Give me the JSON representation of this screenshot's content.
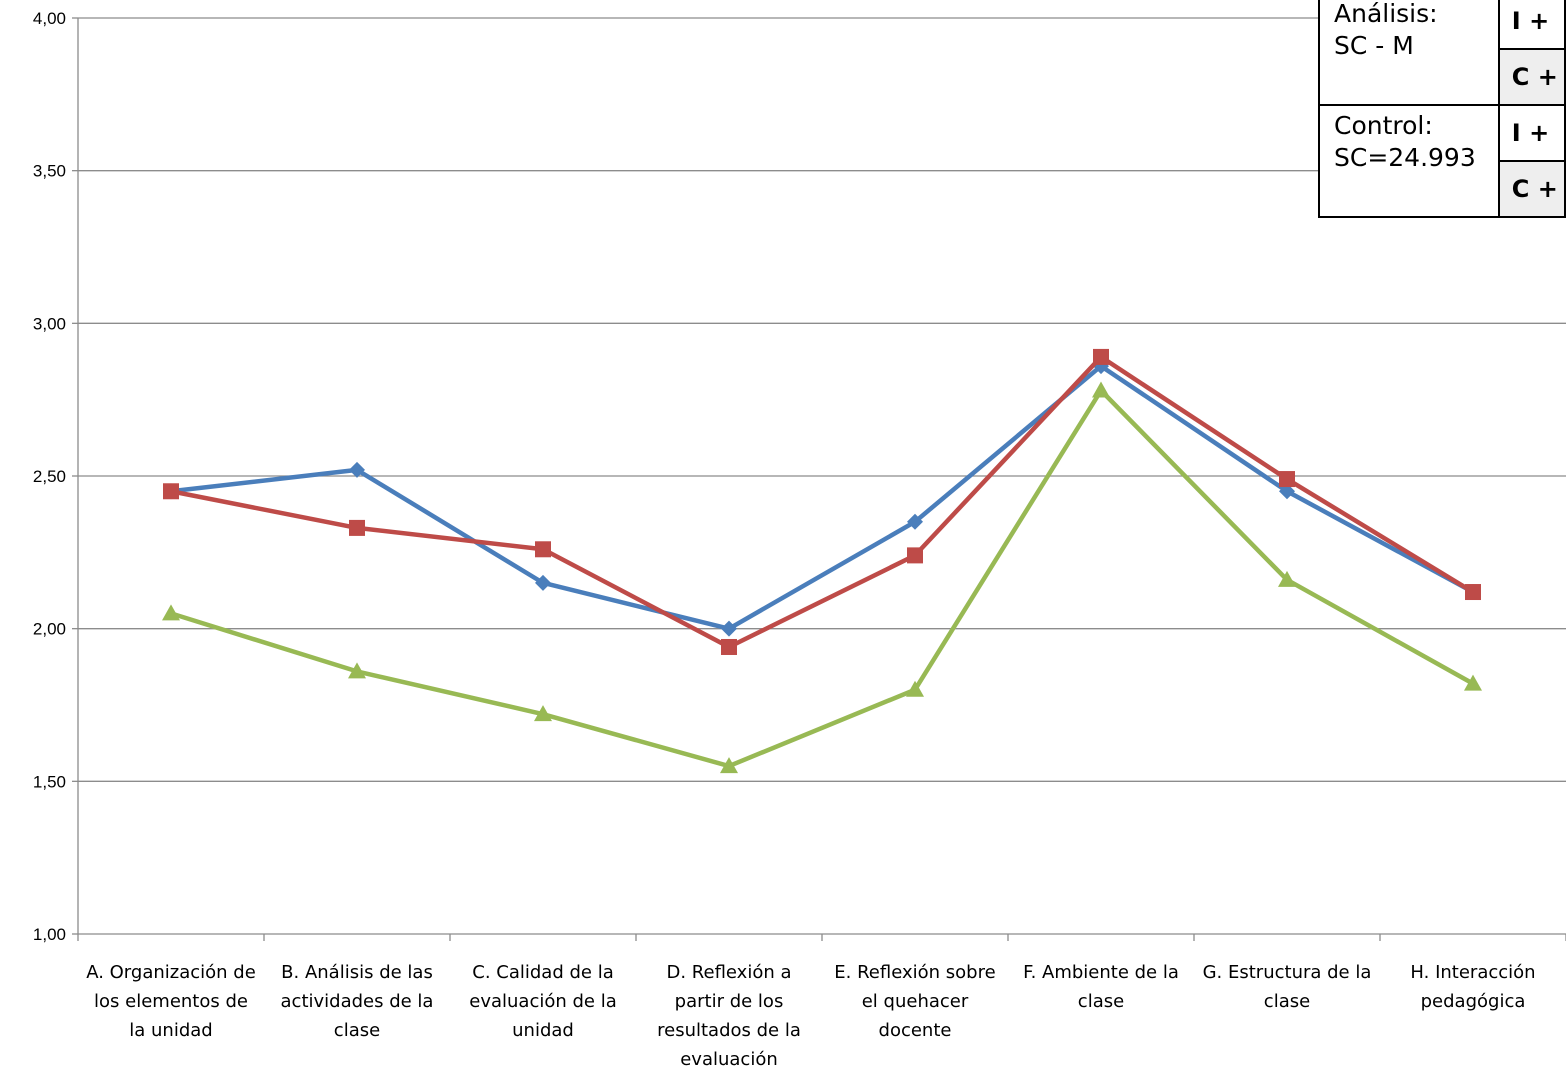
{
  "chart_data": {
    "type": "line",
    "title": "",
    "xlabel": "",
    "ylabel": "",
    "ylim": [
      1.0,
      4.0
    ],
    "yticks": [
      "1,00",
      "1,50",
      "2,00",
      "2,50",
      "3,00",
      "3,50",
      "4,00"
    ],
    "grid": true,
    "categories": [
      [
        "A. Organización de",
        "los elementos de",
        "la unidad"
      ],
      [
        "B. Análisis de las",
        "actividades de la",
        "clase"
      ],
      [
        "C. Calidad de la",
        "evaluación de la",
        "unidad"
      ],
      [
        "D. Reflexión a",
        "partir de los",
        "resultados de la",
        "evaluación"
      ],
      [
        "E. Reflexión sobre",
        "el quehacer",
        "docente"
      ],
      [
        "F. Ambiente de la",
        "clase"
      ],
      [
        "G. Estructura de la",
        "clase"
      ],
      [
        "H. Interacción",
        "pedagógica"
      ]
    ],
    "series": [
      {
        "color": "#4a7ebb",
        "marker": "diamond",
        "values": [
          2.45,
          2.52,
          2.15,
          2.0,
          2.35,
          2.86,
          2.45,
          2.12
        ]
      },
      {
        "color": "#be4b48",
        "marker": "square",
        "values": [
          2.45,
          2.33,
          2.26,
          1.94,
          2.24,
          2.89,
          2.49,
          2.12
        ]
      },
      {
        "color": "#98b954",
        "marker": "triangle",
        "values": [
          2.05,
          1.86,
          1.72,
          1.55,
          1.8,
          2.78,
          2.16,
          1.82
        ]
      }
    ]
  },
  "legend_table": {
    "rows": [
      {
        "label_lines": [
          "Análisis:",
          "SC - M"
        ],
        "codes": [
          "I +",
          "C +"
        ]
      },
      {
        "label_lines": [
          "Control:",
          "SC=24.993"
        ],
        "codes": [
          "I +",
          "C +"
        ]
      }
    ]
  }
}
